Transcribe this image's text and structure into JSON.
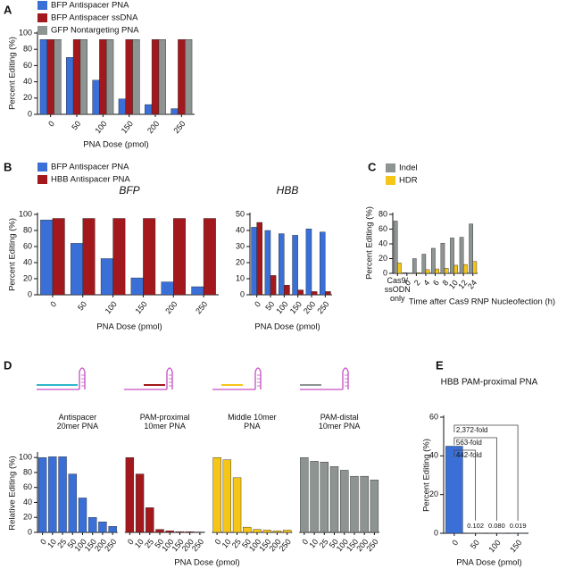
{
  "chart_data": [
    {
      "type": "bar",
      "panel": "A",
      "ylabel": "Percent Editing (%)",
      "xlabel": "PNA Dose (pmol)",
      "categories": [
        "0",
        "50",
        "100",
        "150",
        "200",
        "250"
      ],
      "series": [
        {
          "name": "BFP Antispacer PNA",
          "color": "#3a6fd8",
          "values": [
            92,
            70,
            42,
            19,
            12,
            7
          ]
        },
        {
          "name": "BFP Antispacer ssDNA",
          "color": "#a3181d",
          "values": [
            92,
            92,
            92,
            92,
            92,
            92
          ]
        },
        {
          "name": "GFP Nontargeting PNA",
          "color": "#8d9491",
          "values": [
            92,
            92,
            92,
            92,
            92,
            92
          ]
        }
      ],
      "ylim": [
        0,
        100
      ],
      "yticks": [
        0,
        20,
        40,
        60,
        80,
        100
      ]
    },
    {
      "type": "bar",
      "panel": "B",
      "title": "BFP",
      "ylabel": "Percent Editing (%)",
      "xlabel": "PNA Dose (pmol)",
      "categories": [
        "0",
        "50",
        "100",
        "150",
        "200",
        "250"
      ],
      "series": [
        {
          "name": "BFP Antispacer PNA",
          "color": "#3a6fd8",
          "values": [
            93,
            64,
            45,
            21,
            16,
            10
          ]
        },
        {
          "name": "HBB Antispacer PNA",
          "color": "#a3181d",
          "values": [
            95,
            95,
            95,
            95,
            95,
            95
          ]
        }
      ],
      "ylim": [
        0,
        100
      ],
      "yticks": [
        0,
        20,
        40,
        60,
        80,
        100
      ]
    },
    {
      "type": "bar",
      "title": "HBB",
      "xlabel": "PNA Dose (pmol)",
      "categories": [
        "0",
        "50",
        "100",
        "150",
        "200",
        "250"
      ],
      "series": [
        {
          "color": "#3a6fd8",
          "values": [
            42,
            40,
            38,
            37,
            41,
            39
          ]
        },
        {
          "color": "#a3181d",
          "values": [
            45,
            12,
            6,
            3,
            2,
            2
          ]
        }
      ],
      "ylim": [
        0,
        50
      ],
      "yticks": [
        0,
        10,
        20,
        30,
        40,
        50
      ]
    },
    {
      "type": "bar",
      "panel": "C",
      "ylabel": "Percent Editing (%)",
      "xlabel": "Time after Cas9 RNP Nucleofection (h)",
      "categories": [
        "Cas9/\nssODN\nonly",
        "0",
        "2",
        "4",
        "6",
        "8",
        "10",
        "12",
        "24"
      ],
      "series": [
        {
          "name": "Indel",
          "color": "#8d9491",
          "values": [
            71,
            1,
            20,
            26,
            34,
            41,
            48,
            49,
            67
          ]
        },
        {
          "name": "HDR",
          "color": "#f5c518",
          "values": [
            14,
            0.5,
            1,
            5,
            6,
            7,
            11,
            12,
            16
          ]
        }
      ],
      "ylim": [
        0,
        80
      ],
      "yticks": [
        0,
        20,
        40,
        60,
        80
      ]
    },
    {
      "type": "bar",
      "panel": "D",
      "facets": true,
      "ylabel": "Relative Editing (%)",
      "xlabel": "PNA Dose (pmol)",
      "categories": [
        "0",
        "10",
        "25",
        "50",
        "100",
        "150",
        "200",
        "250"
      ],
      "series": [
        {
          "name": "Antispacer\n20mer PNA",
          "color": "#3a6fd8",
          "values": [
            100,
            101,
            101,
            78,
            46,
            20,
            14,
            8
          ]
        },
        {
          "name": "PAM-proximal\n10mer PNA",
          "color": "#a3181d",
          "values": [
            100,
            78,
            33,
            4,
            2,
            1,
            1,
            0.5
          ]
        },
        {
          "name": "Middle 10mer\nPNA",
          "color": "#f5c518",
          "values": [
            100,
            97,
            73,
            7,
            4,
            3,
            2,
            3
          ]
        },
        {
          "name": "PAM-distal\n10mer PNA",
          "color": "#8d9491",
          "values": [
            100,
            95,
            94,
            88,
            83,
            75,
            75,
            70
          ]
        }
      ],
      "ylim": [
        0,
        105
      ],
      "yticks": [
        0,
        20,
        40,
        60,
        80,
        100
      ]
    },
    {
      "type": "bar",
      "panel": "E",
      "title": "HBB PAM-proximal PNA",
      "ylabel": "Percent Editing (%)",
      "xlabel": "PNA Dose (pmol)",
      "categories": [
        "0",
        "50",
        "100",
        "150"
      ],
      "values": [
        45,
        0.102,
        0.08,
        0.019
      ],
      "value_labels": [
        null,
        "0.102",
        "0.080",
        "0.019"
      ],
      "color": "#3a6fd8",
      "annotations": [
        "442-fold",
        "563-fold",
        "2,372-fold"
      ],
      "ylim": [
        0,
        60
      ],
      "yticks": [
        0,
        20,
        40,
        60
      ]
    }
  ]
}
